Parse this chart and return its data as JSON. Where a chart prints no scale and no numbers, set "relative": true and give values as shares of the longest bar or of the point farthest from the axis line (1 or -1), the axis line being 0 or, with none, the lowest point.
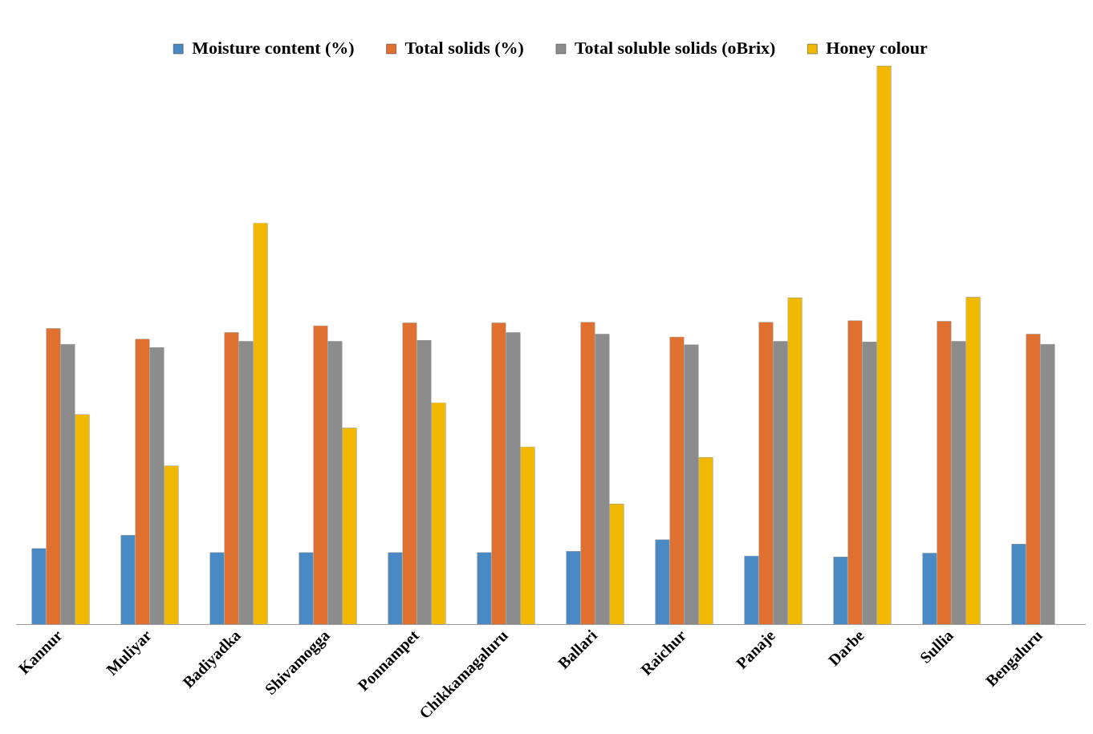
{
  "chart_data": {
    "type": "bar",
    "relative": true,
    "legend": "top",
    "grid": false,
    "categories": [
      "Kannur",
      "Muliyar",
      "Badiyadka",
      "Shivamogga",
      "Ponnampet",
      "Chikkamagaluru",
      "Ballari",
      "Raichur",
      "Panaje",
      "Darbe",
      "Sullia",
      "Bengaluru"
    ],
    "series": [
      {
        "name": "Moisture content (%)",
        "color": "#4a8ac4",
        "values": [
          0.136,
          0.16,
          0.129,
          0.129,
          0.129,
          0.129,
          0.131,
          0.152,
          0.123,
          0.121,
          0.128,
          0.144
        ]
      },
      {
        "name": "Total solids (%)",
        "color": "#e07030",
        "values": [
          0.53,
          0.511,
          0.523,
          0.535,
          0.54,
          0.54,
          0.541,
          0.515,
          0.541,
          0.544,
          0.543,
          0.52
        ]
      },
      {
        "name": "Total soluble solids (oBrix)",
        "color": "#8c8c8c",
        "values": [
          0.502,
          0.496,
          0.507,
          0.507,
          0.509,
          0.523,
          0.52,
          0.501,
          0.507,
          0.506,
          0.507,
          0.502
        ]
      },
      {
        "name": "Honey colour",
        "color": "#f0b800",
        "values": [
          0.376,
          0.284,
          0.719,
          0.352,
          0.397,
          0.318,
          0.216,
          0.299,
          0.585,
          1,
          0.586,
          null
        ]
      }
    ]
  }
}
